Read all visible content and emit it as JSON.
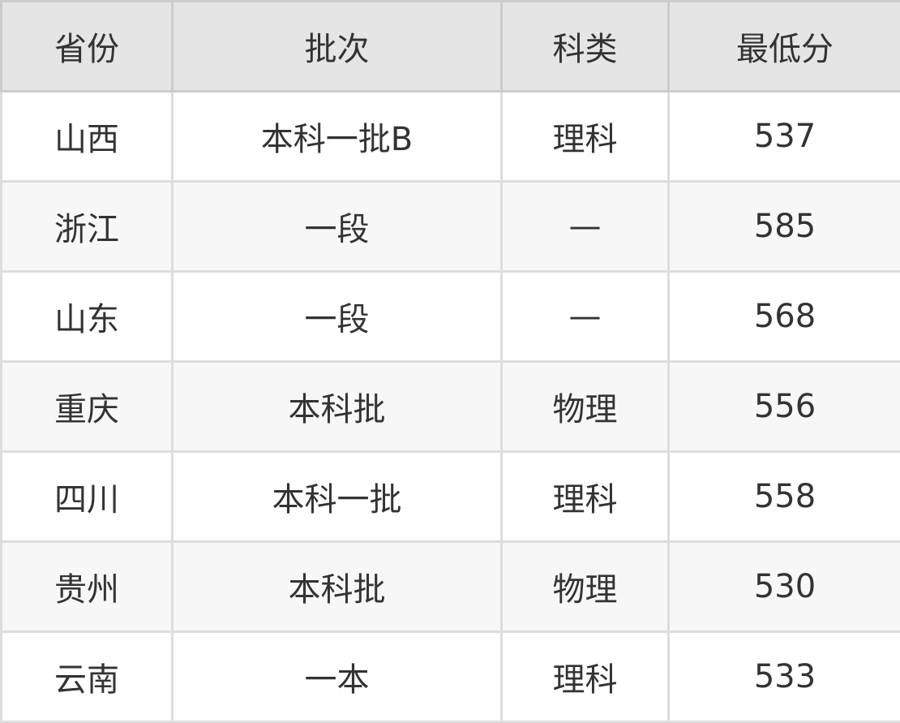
{
  "table": {
    "headers": [
      "省份",
      "批次",
      "科类",
      "最低分"
    ],
    "rows": [
      [
        "山西",
        "本科一批B",
        "理科",
        "537"
      ],
      [
        "浙江",
        "一段",
        "—",
        "585"
      ],
      [
        "山东",
        "一段",
        "—",
        "568"
      ],
      [
        "重庆",
        "本科批",
        "物理",
        "556"
      ],
      [
        "四川",
        "本科一批",
        "理科",
        "558"
      ],
      [
        "贵州",
        "本科批",
        "物理",
        "530"
      ],
      [
        "云南",
        "一本",
        "理科",
        "533"
      ]
    ]
  },
  "colors": {
    "header_bg": "#e5e5e5",
    "alt_row_bg": "#f7f7f7",
    "border": "#dddddd"
  }
}
